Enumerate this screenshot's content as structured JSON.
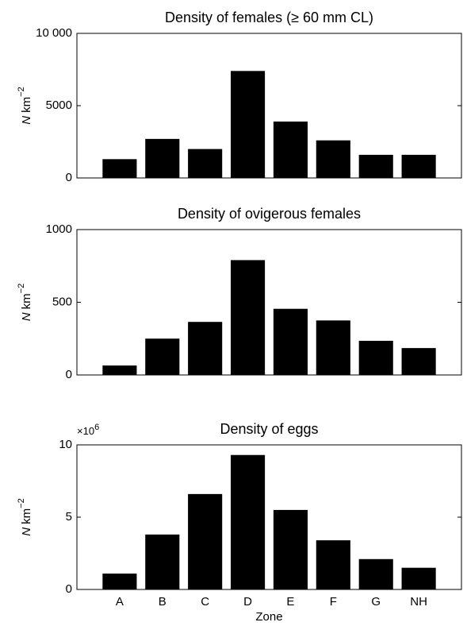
{
  "chart_data": [
    {
      "type": "bar",
      "title": "Density of females (≥ 60 mm CL)",
      "values": [
        1300,
        2700,
        2000,
        7400,
        3900,
        2600,
        1600,
        1600
      ],
      "color": "#000000",
      "ylim": [
        0,
        10000
      ],
      "yticks": [
        0,
        5000,
        {
          "value": 10000,
          "label": "10 000"
        }
      ],
      "ylabel": {
        "symbol": "N",
        "unit": "km",
        "exponent": "−2"
      }
    },
    {
      "type": "bar",
      "title": "Density of ovigerous females",
      "values": [
        65,
        250,
        365,
        790,
        455,
        375,
        235,
        185
      ],
      "color": "#000000",
      "ylim": [
        0,
        1000
      ],
      "yticks": [
        0,
        500,
        1000
      ],
      "ylabel": {
        "symbol": "N",
        "unit": "km",
        "exponent": "−2"
      }
    },
    {
      "type": "bar",
      "title": "Density of eggs",
      "categories": [
        "A",
        "B",
        "C",
        "D",
        "E",
        "F",
        "G",
        "NH"
      ],
      "values": [
        1.1,
        3.8,
        6.6,
        9.3,
        5.5,
        3.4,
        2.1,
        1.5
      ],
      "color": "#000000",
      "ylim": [
        0,
        10
      ],
      "yticks": [
        0,
        5,
        10
      ],
      "y_multiplier": {
        "base": "×10",
        "exponent": "6"
      },
      "ylabel": {
        "symbol": "N",
        "unit": "km",
        "exponent": "−2"
      },
      "xlabel": "Zone"
    }
  ]
}
